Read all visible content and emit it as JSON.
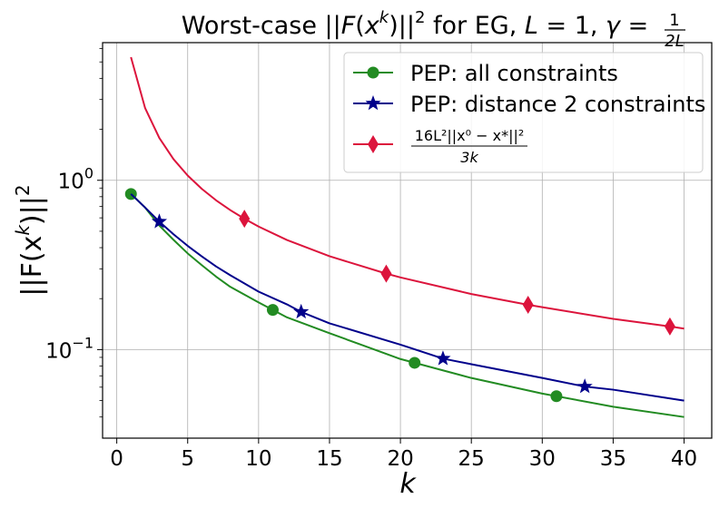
{
  "chart_data": {
    "type": "line",
    "title": "Worst-case ||F(x^k)||^2 for EG, L = 1, γ = 1/(2L)",
    "title_parts": {
      "prefix": "Worst-case ||",
      "F": "F",
      "x": "x",
      "k": "k",
      "close": ")||",
      "sq": "2",
      "mid": " for EG, ",
      "L": "L",
      "eq1": " = 1, ",
      "gamma": "γ",
      "eq2": " = ",
      "frac_num": "1",
      "frac_den": "2L"
    },
    "xlabel": "k",
    "ylabel": "||F(x^k)||^2",
    "ylabel_parts": {
      "a": "||F(x",
      "k": "k",
      "b": ")||",
      "sq": "2"
    },
    "x_scale": "linear",
    "y_scale": "log",
    "xlim": [
      -1,
      41.95
    ],
    "ylim": [
      0.03,
      6.5
    ],
    "x_ticks": [
      0,
      5,
      10,
      15,
      20,
      25,
      30,
      35,
      40
    ],
    "x_tick_labels": [
      "0",
      "5",
      "10",
      "15",
      "20",
      "25",
      "30",
      "35",
      "40"
    ],
    "y_ticks": [
      {
        "value": 1.0,
        "base": "10",
        "exp": "0"
      },
      {
        "value": 0.1,
        "base": "10",
        "exp": "−1"
      }
    ],
    "grid": true,
    "legend_position": "top-right",
    "series": [
      {
        "name": "PEP: all constraints",
        "color": "#228B22",
        "marker": "circle",
        "marker_x": [
          1,
          11,
          21,
          31
        ],
        "x": [
          1,
          2,
          3,
          4,
          5,
          6,
          7,
          8,
          10,
          12,
          15,
          20,
          25,
          30,
          35,
          40
        ],
        "y": [
          0.83,
          0.69,
          0.54,
          0.445,
          0.37,
          0.315,
          0.27,
          0.235,
          0.19,
          0.155,
          0.125,
          0.088,
          0.068,
          0.055,
          0.046,
          0.04
        ]
      },
      {
        "name": "PEP: distance 2 constraints",
        "color": "#00008B",
        "marker": "star",
        "marker_x": [
          3,
          13,
          23,
          33
        ],
        "x": [
          1,
          2,
          3,
          4,
          5,
          6,
          7,
          8,
          10,
          12,
          13,
          15,
          20,
          23,
          25,
          30,
          33,
          35,
          40
        ],
        "y": [
          0.83,
          0.69,
          0.57,
          0.48,
          0.41,
          0.355,
          0.31,
          0.275,
          0.22,
          0.185,
          0.167,
          0.143,
          0.107,
          0.0885,
          0.082,
          0.068,
          0.0605,
          0.058,
          0.05
        ]
      },
      {
        "name": "16L^2||x^0 − x^*||^2 / (3k)",
        "name_parts": {
          "num": "16L²||x⁰ − x*||²",
          "den": "3k"
        },
        "color": "#DC143C",
        "marker": "diamond",
        "marker_x": [
          9,
          19,
          29,
          39
        ],
        "x": [
          1,
          2,
          3,
          4,
          5,
          6,
          7,
          8,
          9,
          10,
          12,
          15,
          19,
          20,
          25,
          29,
          30,
          35,
          39,
          40
        ],
        "y": [
          5.333,
          2.667,
          1.778,
          1.333,
          1.067,
          0.889,
          0.762,
          0.667,
          0.593,
          0.533,
          0.444,
          0.356,
          0.281,
          0.267,
          0.213,
          0.184,
          0.178,
          0.152,
          0.137,
          0.133
        ]
      }
    ]
  }
}
